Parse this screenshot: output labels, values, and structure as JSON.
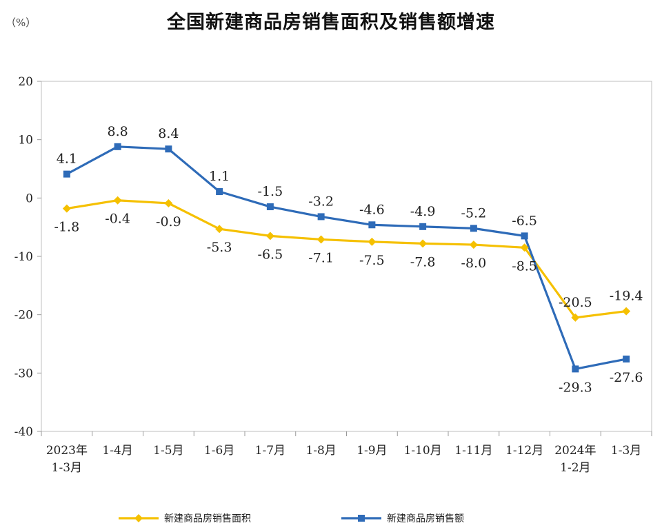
{
  "chart_data": {
    "type": "line",
    "title": "全国新建商品房销售面积及销售额增速",
    "unit_label": "（%）",
    "ylim": [
      -40,
      20
    ],
    "yticks": [
      20,
      10,
      0,
      -10,
      -20,
      -30,
      -40
    ],
    "categories": [
      [
        "2023年",
        "1-3月"
      ],
      [
        "1-4月"
      ],
      [
        "1-5月"
      ],
      [
        "1-6月"
      ],
      [
        "1-7月"
      ],
      [
        "1-8月"
      ],
      [
        "1-9月"
      ],
      [
        "1-10月"
      ],
      [
        "1-11月"
      ],
      [
        "1-12月"
      ],
      [
        "2024年",
        "1-2月"
      ],
      [
        "1-3月"
      ]
    ],
    "series": [
      {
        "name": "新建商品房销售面积",
        "color": "#F5C000",
        "marker": "diamond",
        "values": [
          -1.8,
          -0.4,
          -0.9,
          -5.3,
          -6.5,
          -7.1,
          -7.5,
          -7.8,
          -8.0,
          -8.5,
          -20.5,
          -19.4
        ],
        "labels": [
          "-1.8",
          "-0.4",
          "-0.9",
          "-5.3",
          "-6.5",
          "-7.1",
          "-7.5",
          "-7.8",
          "-8.0",
          "-8.5",
          "-20.5",
          "-19.4"
        ]
      },
      {
        "name": "新建商品房销售额",
        "color": "#2E6BB8",
        "marker": "square",
        "values": [
          4.1,
          8.8,
          8.4,
          1.1,
          -1.5,
          -3.2,
          -4.6,
          -4.9,
          -5.2,
          -6.5,
          -29.3,
          -27.6
        ],
        "labels": [
          "4.1",
          "8.8",
          "8.4",
          "1.1",
          "-1.5",
          "-3.2",
          "-4.6",
          "-4.9",
          "-5.2",
          "-6.5",
          "-29.3",
          "-27.6"
        ]
      }
    ]
  }
}
